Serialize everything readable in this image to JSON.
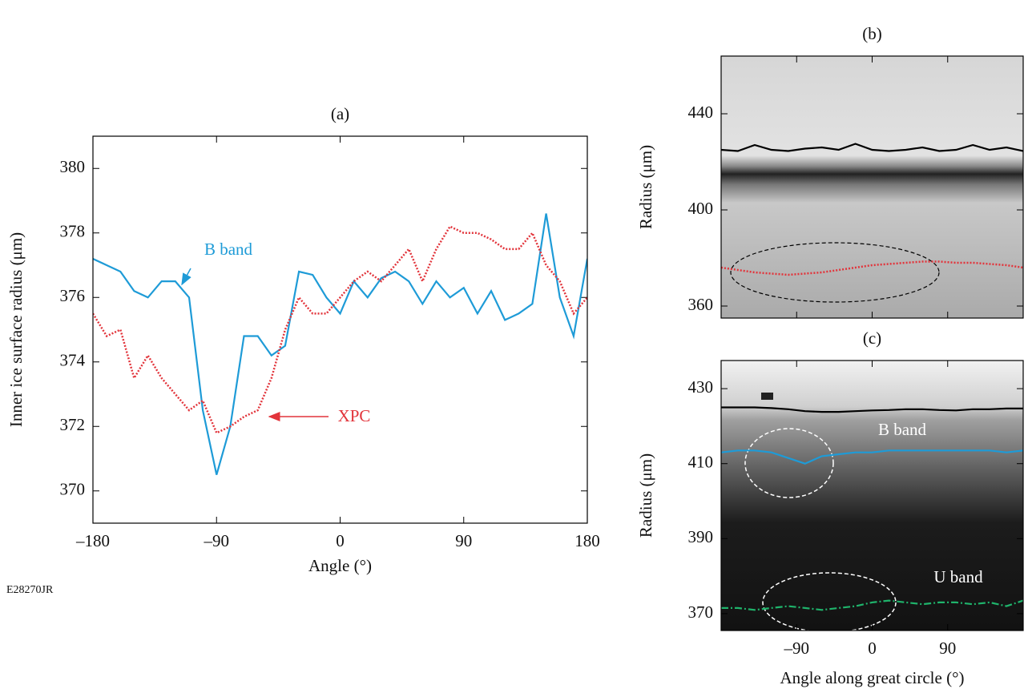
{
  "figure_id": "E28270JR",
  "chart_data": [
    {
      "type": "line",
      "title": "(a)",
      "xlabel": "Angle (°)",
      "ylabel": "Inner ice surface radius (μm)",
      "xlim": [
        -180,
        180
      ],
      "ylim": [
        369,
        381
      ],
      "xticks": [
        {
          "value": -180,
          "label": "–180"
        },
        {
          "value": -90,
          "label": "–90"
        },
        0,
        90,
        180
      ],
      "yticks": [
        370,
        372,
        374,
        376,
        378,
        380
      ],
      "grid": false,
      "x": [
        -180,
        -170,
        -160,
        -150,
        -140,
        -130,
        -120,
        -110,
        -100,
        -90,
        -80,
        -70,
        -60,
        -50,
        -40,
        -30,
        -20,
        -10,
        0,
        10,
        20,
        30,
        40,
        50,
        60,
        70,
        80,
        90,
        100,
        110,
        120,
        130,
        140,
        150,
        160,
        170,
        180
      ],
      "series": [
        {
          "name": "B band",
          "color": "#1e9bd7",
          "dash": "solid",
          "values": [
            377.2,
            377.0,
            376.8,
            376.2,
            376.0,
            376.5,
            376.5,
            376.0,
            372.5,
            370.5,
            372.0,
            374.8,
            374.8,
            374.2,
            374.5,
            376.8,
            376.7,
            376.0,
            375.5,
            376.5,
            376.0,
            376.6,
            376.8,
            376.5,
            375.8,
            376.5,
            376.0,
            376.3,
            375.5,
            376.2,
            375.3,
            375.5,
            375.8,
            378.6,
            376.0,
            374.8,
            377.2
          ]
        },
        {
          "name": "XPC",
          "color": "#e2343b",
          "dash": "dotted",
          "values": [
            375.5,
            374.8,
            375.0,
            373.5,
            374.2,
            373.5,
            373.0,
            372.5,
            372.8,
            371.8,
            372.0,
            372.3,
            372.5,
            373.5,
            375.0,
            376.0,
            375.5,
            375.5,
            376.0,
            376.5,
            376.8,
            376.5,
            377.0,
            377.5,
            376.5,
            377.5,
            378.2,
            378.0,
            378.0,
            377.8,
            377.5,
            377.5,
            378.0,
            377.0,
            376.5,
            375.5,
            376.0
          ]
        }
      ]
    },
    {
      "type": "line",
      "title": "(b)",
      "ylabel": "Radius (μm)",
      "xlim": [
        -180,
        180
      ],
      "ylim": [
        355,
        464
      ],
      "xticks": [
        -90,
        0,
        90
      ],
      "yticks": [
        360,
        400,
        440
      ],
      "grid": false,
      "x": [
        -180,
        -160,
        -140,
        -120,
        -100,
        -80,
        -60,
        -40,
        -20,
        0,
        20,
        40,
        60,
        80,
        100,
        120,
        140,
        160,
        180
      ],
      "series": [
        {
          "color": "#000000",
          "dash": "solid",
          "values": [
            425,
            424.5,
            427,
            425,
            424.5,
            425.5,
            426,
            425,
            427.5,
            425,
            424.5,
            425,
            426,
            424.5,
            425,
            427,
            425,
            426,
            424.5
          ]
        },
        {
          "color": "#e2343b",
          "dash": "dotted",
          "values": [
            376,
            375,
            374,
            373.5,
            373,
            373.5,
            374,
            375,
            376,
            377,
            377.5,
            378,
            378.5,
            378.5,
            378,
            378,
            377.5,
            377,
            376
          ]
        }
      ]
    },
    {
      "type": "line",
      "title": "(c)",
      "xlabel": "Angle along great circle (°)",
      "ylabel": "Radius (μm)",
      "xlim": [
        -180,
        180
      ],
      "ylim": [
        365.5,
        437.5
      ],
      "xticks": [
        {
          "value": -90,
          "label": "–90"
        },
        0,
        90
      ],
      "yticks": [
        370,
        390,
        410,
        430
      ],
      "grid": false,
      "x": [
        -180,
        -160,
        -140,
        -120,
        -100,
        -80,
        -60,
        -40,
        -20,
        0,
        20,
        40,
        60,
        80,
        100,
        120,
        140,
        160,
        180
      ],
      "series": [
        {
          "color": "#000000",
          "dash": "solid",
          "values": [
            425,
            425,
            425,
            424.8,
            424.5,
            424,
            423.8,
            423.8,
            424,
            424.2,
            424.3,
            424.5,
            424.5,
            424.3,
            424.2,
            424.5,
            424.5,
            424.7,
            424.7
          ]
        },
        {
          "name": "B band",
          "color": "#1e9bd7",
          "dash": "solid",
          "values": [
            413,
            413.5,
            413.5,
            413,
            411.5,
            410,
            412,
            412.5,
            413,
            413,
            413.5,
            413.5,
            413.5,
            413.5,
            413.5,
            413.5,
            413.5,
            413,
            413.5
          ]
        },
        {
          "name": "U band",
          "color": "#1fb36b",
          "dash": "dashdot",
          "values": [
            371.5,
            371.5,
            371,
            371.5,
            372,
            371.5,
            371,
            371.5,
            372,
            373,
            373.5,
            373,
            372.5,
            373,
            373,
            372.5,
            373,
            372,
            373.5
          ]
        }
      ]
    }
  ]
}
